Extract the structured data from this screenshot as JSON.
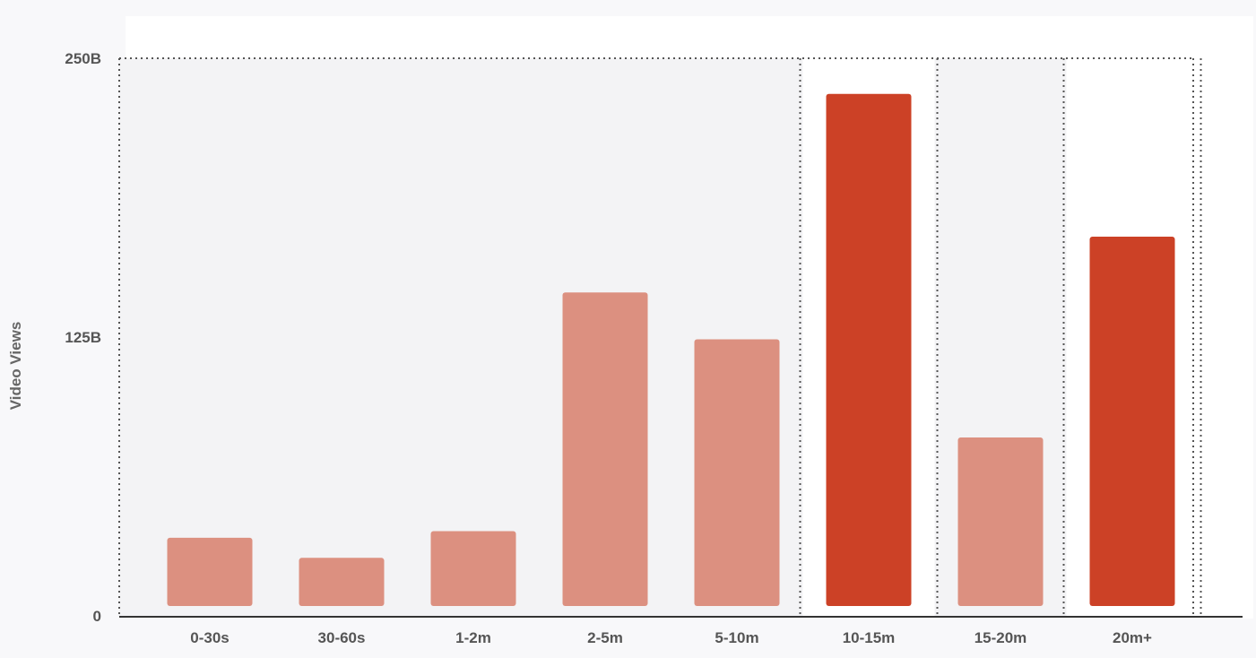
{
  "chart_data": {
    "type": "bar",
    "title": "",
    "xlabel": "",
    "ylabel": "Video Views",
    "categories": [
      "0-30s",
      "30-60s",
      "1-2m",
      "2-5m",
      "5-10m",
      "10-15m",
      "15-20m",
      "20m+"
    ],
    "values": [
      35,
      26,
      38,
      145,
      124,
      234,
      80,
      170
    ],
    "highlighted": [
      false,
      false,
      false,
      false,
      false,
      true,
      false,
      true
    ],
    "ylim": [
      0,
      250
    ],
    "y_ticks": [
      {
        "value": 0,
        "label": "0"
      },
      {
        "value": 125,
        "label": "125B"
      },
      {
        "value": 250,
        "label": "250B"
      }
    ],
    "colors": {
      "bar": "#dc9080",
      "bar_highlight": "#cc4126",
      "plot_shade": "#f3f3f5",
      "plot_background": "#ffffff",
      "page_background": "#f8f8fa",
      "axis": "#333333",
      "grid_dotted": "#555555"
    }
  }
}
